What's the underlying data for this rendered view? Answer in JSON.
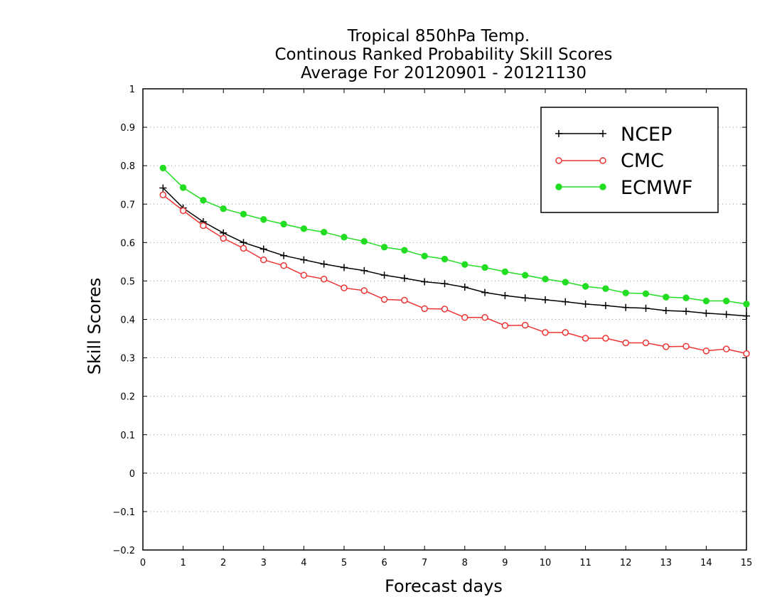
{
  "chart_data": {
    "type": "line",
    "title_lines": [
      "Tropical 850hPa Temp.",
      "Continous Ranked Probability Skill Scores",
      "Average For 20120901 - 20121130"
    ],
    "xlabel": "Forecast days",
    "ylabel": "Skill Scores",
    "xlim": [
      0,
      15
    ],
    "ylim": [
      -0.2,
      1
    ],
    "x_ticks": [
      0,
      1,
      2,
      3,
      4,
      5,
      6,
      7,
      8,
      9,
      10,
      11,
      12,
      13,
      14,
      15
    ],
    "x_tick_labels": [
      "0",
      "1",
      "2",
      "3",
      "4",
      "5",
      "6",
      "7",
      "8",
      "9",
      "10",
      "11",
      "12",
      "13",
      "14",
      "15"
    ],
    "y_ticks": [
      -0.2,
      -0.1,
      0,
      0.1,
      0.2,
      0.3,
      0.4,
      0.5,
      0.6,
      0.7,
      0.8,
      0.9,
      1
    ],
    "y_tick_labels": [
      "−0.2",
      "−0.1",
      "0",
      "0.1",
      "0.2",
      "0.3",
      "0.4",
      "0.5",
      "0.6",
      "0.7",
      "0.8",
      "0.9",
      "1"
    ],
    "grid": "horizontal dotted",
    "legend_position": "top-right",
    "x": [
      0.5,
      1,
      1.5,
      2,
      2.5,
      3,
      3.5,
      4,
      4.5,
      5,
      5.5,
      6,
      6.5,
      7,
      7.5,
      8,
      8.5,
      9,
      9.5,
      10,
      10.5,
      11,
      11.5,
      12,
      12.5,
      13,
      13.5,
      14,
      14.5,
      15
    ],
    "series": [
      {
        "name": "NCEP",
        "color": "#000000",
        "marker": "plus",
        "values": [
          0.742,
          0.69,
          0.654,
          0.625,
          0.6,
          0.583,
          0.566,
          0.555,
          0.544,
          0.535,
          0.527,
          0.515,
          0.507,
          0.498,
          0.493,
          0.484,
          0.47,
          0.462,
          0.456,
          0.451,
          0.446,
          0.44,
          0.436,
          0.431,
          0.429,
          0.423,
          0.421,
          0.416,
          0.413,
          0.409
        ]
      },
      {
        "name": "CMC",
        "color": "#ee3333",
        "marker": "open-circle",
        "values": [
          0.724,
          0.683,
          0.644,
          0.611,
          0.585,
          0.555,
          0.54,
          0.515,
          0.505,
          0.482,
          0.475,
          0.452,
          0.45,
          0.428,
          0.427,
          0.405,
          0.405,
          0.384,
          0.385,
          0.366,
          0.366,
          0.351,
          0.351,
          0.339,
          0.339,
          0.329,
          0.33,
          0.318,
          0.323,
          0.311
        ]
      },
      {
        "name": "ECMWF",
        "color": "#22dd22",
        "marker": "filled-circle",
        "values": [
          0.794,
          0.743,
          0.71,
          0.688,
          0.674,
          0.66,
          0.648,
          0.636,
          0.627,
          0.614,
          0.603,
          0.588,
          0.58,
          0.565,
          0.557,
          0.543,
          0.535,
          0.524,
          0.515,
          0.505,
          0.497,
          0.486,
          0.48,
          0.469,
          0.467,
          0.458,
          0.456,
          0.448,
          0.448,
          0.44
        ]
      }
    ]
  }
}
